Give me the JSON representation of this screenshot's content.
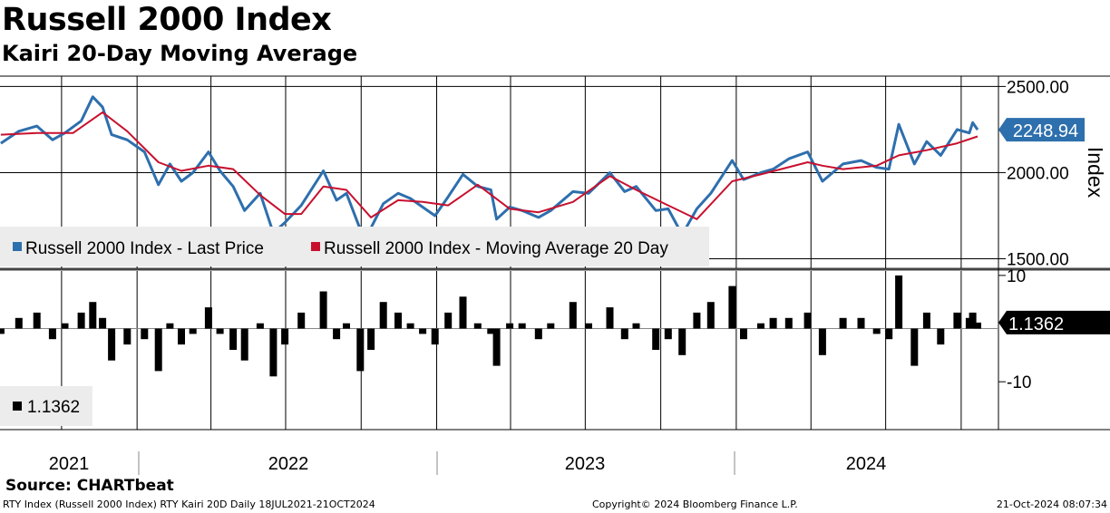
{
  "header": {
    "title": "Russell 2000 Index",
    "subtitle": "Kairi 20-Day Moving Average"
  },
  "footer": {
    "source": "Source: CHARTbeat",
    "left": "RTY Index (Russell 2000 Index) RTY Kairi 20D  Daily 18JUL2021-21OCT2024",
    "center": "Copyright© 2024 Bloomberg Finance L.P.",
    "right": "21-Oct-2024 08:07:34"
  },
  "colors": {
    "price": "#2e6fad",
    "moving_average": "#c8102e",
    "kairi_bars": "#000000",
    "grid": "#000000",
    "legend_bg": "#ececec"
  },
  "chart_data": [
    {
      "type": "line",
      "title": "",
      "ylabel": "Index",
      "ylim": [
        1450,
        2560
      ],
      "yticks": [
        "2500.00",
        "2000.00",
        "1500.00"
      ],
      "ytick_values": [
        2500,
        2000,
        1500
      ],
      "x_year_labels": [
        "2021",
        "2022",
        "2023",
        "2024"
      ],
      "x_range": [
        "2021-07-18",
        "2024-10-21"
      ],
      "last_value_label": "2248.94",
      "legend_position": "bottom-left",
      "series": [
        {
          "name": "Russell 2000 Index - Last Price",
          "color": "#2e6fad",
          "points": [
            [
              "2021-07-19",
              2170
            ],
            [
              "2021-08-10",
              2240
            ],
            [
              "2021-09-01",
              2270
            ],
            [
              "2021-09-20",
              2190
            ],
            [
              "2021-10-05",
              2230
            ],
            [
              "2021-10-25",
              2300
            ],
            [
              "2021-11-08",
              2440
            ],
            [
              "2021-11-20",
              2380
            ],
            [
              "2021-12-01",
              2220
            ],
            [
              "2021-12-20",
              2190
            ],
            [
              "2022-01-10",
              2120
            ],
            [
              "2022-01-27",
              1930
            ],
            [
              "2022-02-10",
              2050
            ],
            [
              "2022-02-24",
              1950
            ],
            [
              "2022-03-10",
              2000
            ],
            [
              "2022-03-29",
              2120
            ],
            [
              "2022-04-12",
              2010
            ],
            [
              "2022-04-28",
              1920
            ],
            [
              "2022-05-12",
              1780
            ],
            [
              "2022-05-31",
              1880
            ],
            [
              "2022-06-16",
              1650
            ],
            [
              "2022-06-30",
              1710
            ],
            [
              "2022-07-20",
              1810
            ],
            [
              "2022-08-16",
              2010
            ],
            [
              "2022-09-01",
              1840
            ],
            [
              "2022-09-13",
              1880
            ],
            [
              "2022-09-30",
              1670
            ],
            [
              "2022-10-13",
              1680
            ],
            [
              "2022-10-28",
              1820
            ],
            [
              "2022-11-15",
              1880
            ],
            [
              "2022-11-30",
              1850
            ],
            [
              "2022-12-15",
              1800
            ],
            [
              "2022-12-30",
              1750
            ],
            [
              "2023-01-15",
              1860
            ],
            [
              "2023-02-02",
              1990
            ],
            [
              "2023-02-20",
              1920
            ],
            [
              "2023-03-08",
              1900
            ],
            [
              "2023-03-15",
              1730
            ],
            [
              "2023-03-31",
              1800
            ],
            [
              "2023-04-15",
              1780
            ],
            [
              "2023-05-05",
              1740
            ],
            [
              "2023-05-20",
              1780
            ],
            [
              "2023-06-16",
              1890
            ],
            [
              "2023-07-05",
              1880
            ],
            [
              "2023-07-31",
              2000
            ],
            [
              "2023-08-18",
              1890
            ],
            [
              "2023-09-01",
              1920
            ],
            [
              "2023-09-25",
              1780
            ],
            [
              "2023-10-10",
              1790
            ],
            [
              "2023-10-27",
              1640
            ],
            [
              "2023-11-14",
              1790
            ],
            [
              "2023-12-01",
              1880
            ],
            [
              "2023-12-27",
              2070
            ],
            [
              "2024-01-10",
              1960
            ],
            [
              "2024-01-31",
              2000
            ],
            [
              "2024-02-15",
              2020
            ],
            [
              "2024-03-05",
              2080
            ],
            [
              "2024-03-28",
              2120
            ],
            [
              "2024-04-15",
              1950
            ],
            [
              "2024-05-10",
              2050
            ],
            [
              "2024-06-01",
              2070
            ],
            [
              "2024-06-20",
              2030
            ],
            [
              "2024-07-05",
              2020
            ],
            [
              "2024-07-17",
              2280
            ],
            [
              "2024-08-05",
              2050
            ],
            [
              "2024-08-20",
              2180
            ],
            [
              "2024-09-06",
              2100
            ],
            [
              "2024-09-26",
              2250
            ],
            [
              "2024-10-11",
              2230
            ],
            [
              "2024-10-15",
              2290
            ],
            [
              "2024-10-21",
              2248.94
            ]
          ]
        },
        {
          "name": "Russell 2000 Index - Moving Average 20 Day",
          "color": "#c8102e",
          "points": [
            [
              "2021-07-19",
              2220
            ],
            [
              "2021-09-01",
              2230
            ],
            [
              "2021-10-15",
              2230
            ],
            [
              "2021-11-20",
              2350
            ],
            [
              "2021-12-20",
              2240
            ],
            [
              "2022-01-27",
              2060
            ],
            [
              "2022-02-24",
              2010
            ],
            [
              "2022-03-29",
              2040
            ],
            [
              "2022-04-28",
              2020
            ],
            [
              "2022-05-31",
              1870
            ],
            [
              "2022-06-30",
              1760
            ],
            [
              "2022-07-20",
              1760
            ],
            [
              "2022-08-16",
              1920
            ],
            [
              "2022-09-13",
              1900
            ],
            [
              "2022-10-13",
              1740
            ],
            [
              "2022-11-15",
              1840
            ],
            [
              "2022-12-15",
              1830
            ],
            [
              "2023-01-15",
              1810
            ],
            [
              "2023-02-20",
              1930
            ],
            [
              "2023-03-31",
              1790
            ],
            [
              "2023-05-05",
              1770
            ],
            [
              "2023-06-16",
              1830
            ],
            [
              "2023-07-31",
              1980
            ],
            [
              "2023-09-01",
              1900
            ],
            [
              "2023-10-10",
              1810
            ],
            [
              "2023-11-14",
              1730
            ],
            [
              "2023-12-27",
              1950
            ],
            [
              "2024-01-31",
              1990
            ],
            [
              "2024-03-28",
              2060
            ],
            [
              "2024-04-15",
              2040
            ],
            [
              "2024-05-10",
              2020
            ],
            [
              "2024-06-20",
              2040
            ],
            [
              "2024-07-17",
              2100
            ],
            [
              "2024-08-20",
              2130
            ],
            [
              "2024-09-26",
              2170
            ],
            [
              "2024-10-21",
              2210
            ]
          ]
        }
      ]
    },
    {
      "type": "bar",
      "title": "",
      "ylim": [
        -19,
        11
      ],
      "yticks": [
        "10",
        "-10"
      ],
      "ytick_values": [
        10,
        -10
      ],
      "last_value_label": "1.1362",
      "legend_label": "1.1362",
      "series": [
        {
          "name": "",
          "color": "#000000",
          "points": [
            [
              "2021-07-19",
              -1
            ],
            [
              "2021-08-10",
              2
            ],
            [
              "2021-09-01",
              3
            ],
            [
              "2021-09-20",
              -2
            ],
            [
              "2021-10-05",
              1
            ],
            [
              "2021-10-25",
              3
            ],
            [
              "2021-11-08",
              5
            ],
            [
              "2021-11-20",
              2
            ],
            [
              "2021-12-01",
              -6
            ],
            [
              "2021-12-20",
              -3
            ],
            [
              "2022-01-10",
              -2
            ],
            [
              "2022-01-27",
              -8
            ],
            [
              "2022-02-10",
              1
            ],
            [
              "2022-02-24",
              -3
            ],
            [
              "2022-03-10",
              -1
            ],
            [
              "2022-03-29",
              4
            ],
            [
              "2022-04-12",
              -1
            ],
            [
              "2022-04-28",
              -4
            ],
            [
              "2022-05-12",
              -6
            ],
            [
              "2022-05-31",
              1
            ],
            [
              "2022-06-16",
              -9
            ],
            [
              "2022-06-30",
              -3
            ],
            [
              "2022-07-20",
              3
            ],
            [
              "2022-08-16",
              7
            ],
            [
              "2022-09-01",
              -2
            ],
            [
              "2022-09-13",
              1
            ],
            [
              "2022-09-30",
              -8
            ],
            [
              "2022-10-13",
              -4
            ],
            [
              "2022-10-28",
              5
            ],
            [
              "2022-11-15",
              3
            ],
            [
              "2022-11-30",
              1
            ],
            [
              "2022-12-15",
              -1
            ],
            [
              "2022-12-30",
              -3
            ],
            [
              "2023-01-15",
              3
            ],
            [
              "2023-02-02",
              6
            ],
            [
              "2023-02-20",
              1
            ],
            [
              "2023-03-08",
              -1
            ],
            [
              "2023-03-15",
              -7
            ],
            [
              "2023-03-31",
              1
            ],
            [
              "2023-04-15",
              1
            ],
            [
              "2023-05-05",
              -2
            ],
            [
              "2023-05-20",
              1
            ],
            [
              "2023-06-16",
              5
            ],
            [
              "2023-07-05",
              1
            ],
            [
              "2023-07-31",
              4
            ],
            [
              "2023-08-18",
              -2
            ],
            [
              "2023-09-01",
              1
            ],
            [
              "2023-09-25",
              -4
            ],
            [
              "2023-10-10",
              -2
            ],
            [
              "2023-10-27",
              -5
            ],
            [
              "2023-11-14",
              3
            ],
            [
              "2023-12-01",
              5
            ],
            [
              "2023-12-27",
              8
            ],
            [
              "2024-01-10",
              -2
            ],
            [
              "2024-01-31",
              1
            ],
            [
              "2024-02-15",
              2
            ],
            [
              "2024-03-05",
              2
            ],
            [
              "2024-03-28",
              3
            ],
            [
              "2024-04-15",
              -5
            ],
            [
              "2024-05-10",
              2
            ],
            [
              "2024-06-01",
              2
            ],
            [
              "2024-06-20",
              -1
            ],
            [
              "2024-07-05",
              -2
            ],
            [
              "2024-07-17",
              10
            ],
            [
              "2024-08-05",
              -7
            ],
            [
              "2024-08-20",
              3
            ],
            [
              "2024-09-06",
              -3
            ],
            [
              "2024-09-26",
              3
            ],
            [
              "2024-10-11",
              2
            ],
            [
              "2024-10-15",
              3
            ],
            [
              "2024-10-21",
              1.1362
            ]
          ]
        }
      ]
    }
  ]
}
